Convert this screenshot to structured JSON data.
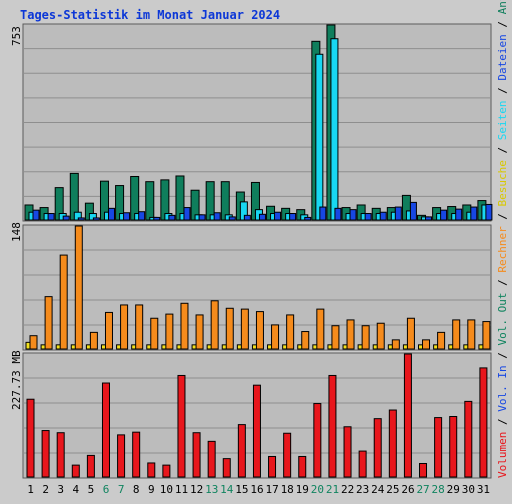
{
  "chart_data": [
    {
      "type": "bar",
      "title": "Tages-Statistik im Monat Januar 2024",
      "ylabel_max": "753",
      "ylim": [
        0,
        753
      ],
      "categories": [
        "1",
        "2",
        "3",
        "4",
        "5",
        "6",
        "7",
        "8",
        "9",
        "10",
        "11",
        "12",
        "13",
        "14",
        "15",
        "16",
        "17",
        "18",
        "19",
        "20",
        "21",
        "22",
        "23",
        "24",
        "25",
        "26",
        "27",
        "28",
        "29",
        "30",
        "31"
      ],
      "weekend_days": [
        "6",
        "7",
        "13",
        "14",
        "20",
        "21",
        "27",
        "28"
      ],
      "legend_right": [
        "Anfragen",
        "Dateien",
        "Seiten"
      ],
      "series": [
        {
          "name": "Anfragen",
          "color": "#0f7e5c",
          "values": [
            58,
            48,
            125,
            180,
            65,
            150,
            133,
            168,
            148,
            155,
            170,
            115,
            148,
            148,
            108,
            145,
            53,
            45,
            40,
            690,
            755,
            48,
            58,
            45,
            48,
            95,
            18,
            48,
            52,
            58,
            75
          ]
        },
        {
          "name": "Dateien",
          "color": "#18d7f2",
          "values": [
            30,
            25,
            25,
            30,
            25,
            30,
            25,
            25,
            10,
            25,
            25,
            20,
            20,
            20,
            70,
            40,
            25,
            25,
            20,
            640,
            700,
            25,
            25,
            25,
            30,
            35,
            12,
            25,
            25,
            30,
            58
          ]
        },
        {
          "name": "Seiten",
          "color": "#1747e3",
          "values": [
            38,
            25,
            15,
            8,
            8,
            45,
            28,
            32,
            10,
            18,
            48,
            20,
            28,
            12,
            18,
            22,
            30,
            25,
            10,
            50,
            45,
            40,
            25,
            30,
            50,
            68,
            12,
            38,
            42,
            50,
            60
          ]
        }
      ]
    },
    {
      "type": "bar",
      "ylabel_max": "148",
      "ylim": [
        0,
        148
      ],
      "legend_right": [
        "Besuche",
        "Rechner"
      ],
      "series": [
        {
          "name": "Besuche",
          "color": "#f2e11e",
          "values": [
            8,
            5,
            5,
            5,
            5,
            5,
            5,
            5,
            5,
            5,
            5,
            5,
            5,
            5,
            5,
            5,
            5,
            5,
            5,
            5,
            5,
            5,
            5,
            5,
            5,
            5,
            5,
            5,
            5,
            5,
            5
          ]
        },
        {
          "name": "Rechner",
          "color": "#f58b1c",
          "values": [
            16,
            63,
            113,
            148,
            20,
            44,
            53,
            53,
            37,
            42,
            55,
            41,
            58,
            49,
            48,
            45,
            29,
            41,
            21,
            48,
            28,
            35,
            28,
            31,
            11,
            37,
            11,
            20,
            35,
            35,
            33
          ]
        }
      ]
    },
    {
      "type": "bar",
      "ylabel_max": "227.73 MB",
      "ylim": [
        0,
        227.73
      ],
      "legend_right": [
        "Vol. Out",
        "Vol. In",
        "Volumen"
      ],
      "series": [
        {
          "name": "Volumen",
          "color": "#e8161c",
          "values": [
            144,
            86,
            82,
            22,
            40,
            174,
            78,
            83,
            26,
            22,
            188,
            82,
            66,
            34,
            97,
            170,
            38,
            81,
            38,
            136,
            188,
            93,
            48,
            108,
            124,
            230,
            25,
            110,
            112,
            140,
            202
          ]
        }
      ]
    }
  ]
}
